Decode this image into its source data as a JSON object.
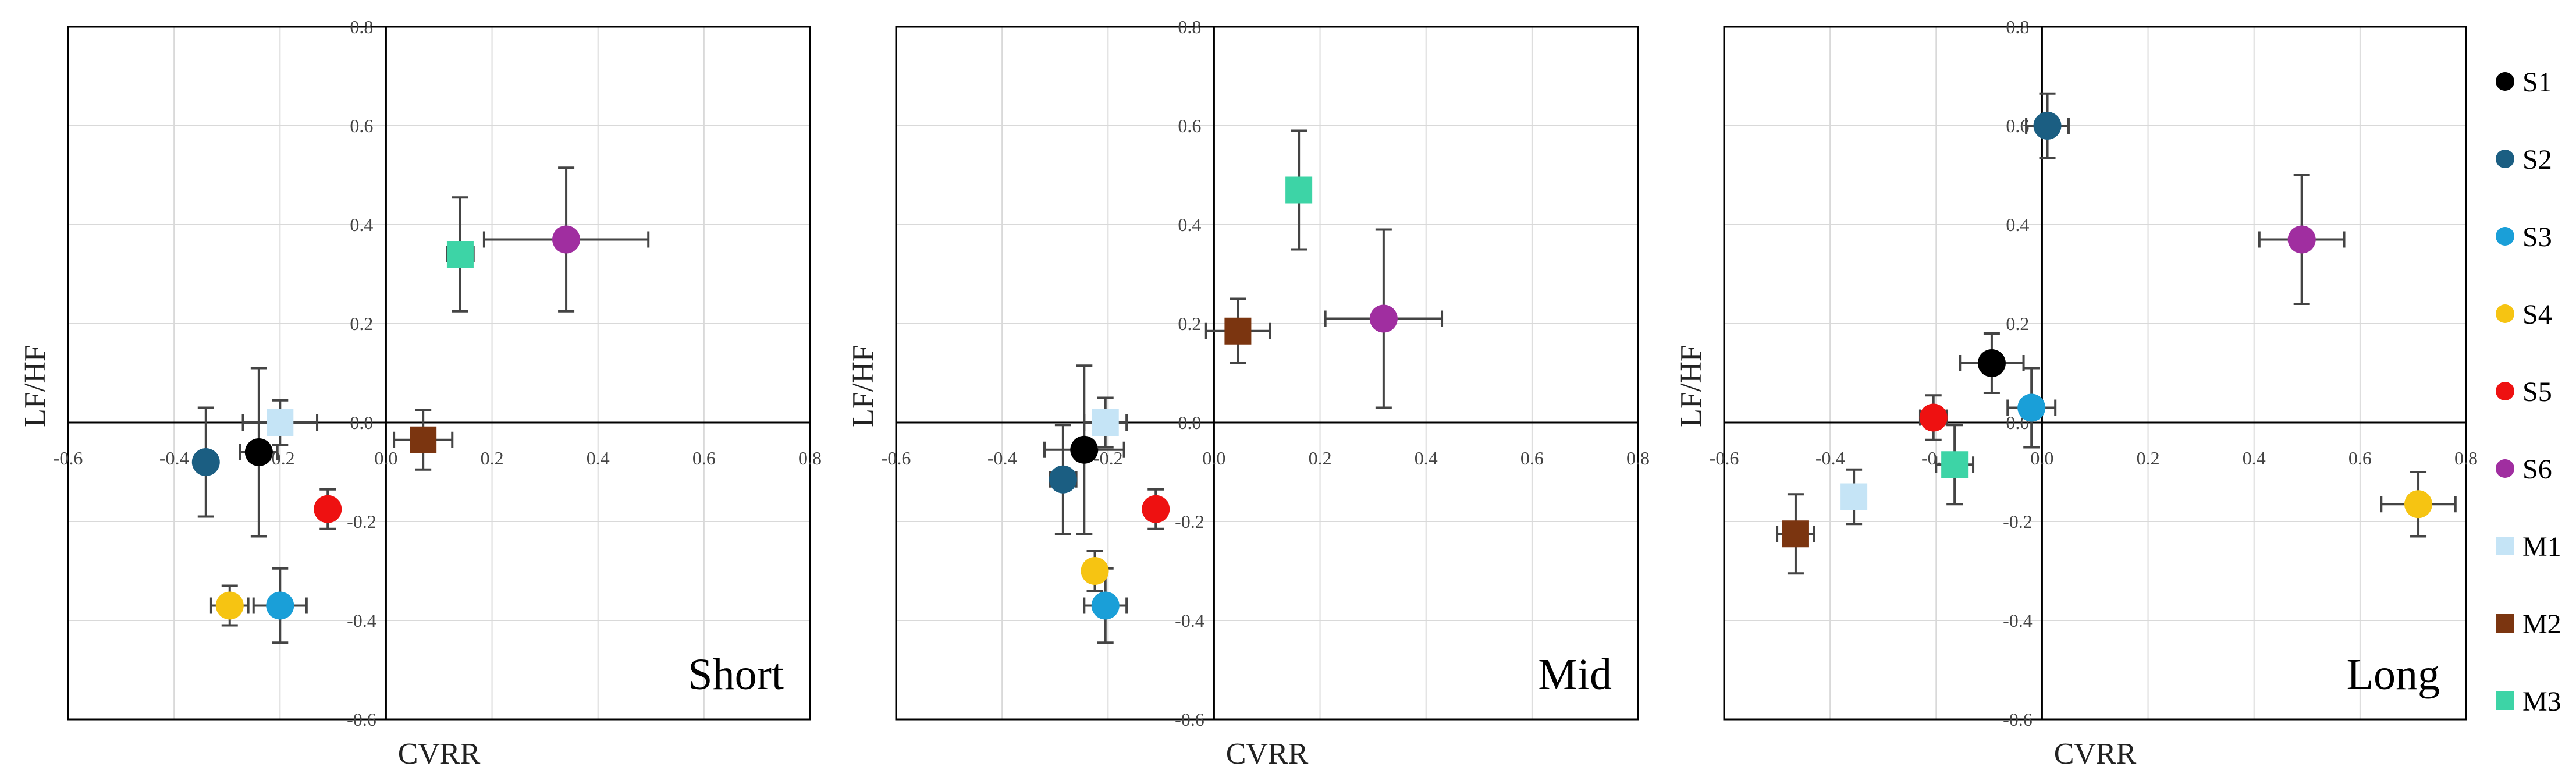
{
  "chart_data": [
    {
      "type": "scatter",
      "panel_label": "Short",
      "xlabel": "CVRR",
      "ylabel": "LF/HF",
      "xlim": [
        -0.6,
        0.8
      ],
      "ylim": [
        -0.6,
        0.8
      ],
      "xticks": [
        -0.6,
        -0.4,
        -0.2,
        0.0,
        0.2,
        0.4,
        0.6,
        0.8
      ],
      "yticks": [
        0.8,
        0.6,
        0.4,
        0.2,
        0.0,
        -0.2,
        -0.4,
        -0.6
      ],
      "series": [
        {
          "name": "S1",
          "x": -0.24,
          "y": -0.06,
          "xerr": 0.035,
          "yerr": 0.17
        },
        {
          "name": "S2",
          "x": -0.34,
          "y": -0.08,
          "xerr": 0.02,
          "yerr": 0.11
        },
        {
          "name": "S3",
          "x": -0.2,
          "y": -0.37,
          "xerr": 0.05,
          "yerr": 0.075
        },
        {
          "name": "S4",
          "x": -0.295,
          "y": -0.37,
          "xerr": 0.035,
          "yerr": 0.04
        },
        {
          "name": "S5",
          "x": -0.11,
          "y": -0.175,
          "xerr": 0.02,
          "yerr": 0.04
        },
        {
          "name": "S6",
          "x": 0.34,
          "y": 0.37,
          "xerr": 0.155,
          "yerr": 0.145
        },
        {
          "name": "M1",
          "x": -0.2,
          "y": 0.0,
          "xerr": 0.07,
          "yerr": 0.045
        },
        {
          "name": "M2",
          "x": 0.07,
          "y": -0.035,
          "xerr": 0.055,
          "yerr": 0.06
        },
        {
          "name": "M3",
          "x": 0.14,
          "y": 0.34,
          "xerr": 0.025,
          "yerr": 0.115
        }
      ]
    },
    {
      "type": "scatter",
      "panel_label": "Mid",
      "xlabel": "CVRR",
      "ylabel": "LF/HF",
      "xlim": [
        -0.6,
        0.8
      ],
      "ylim": [
        -0.6,
        0.8
      ],
      "xticks": [
        -0.6,
        -0.4,
        -0.2,
        0.0,
        0.2,
        0.4,
        0.6,
        0.8
      ],
      "yticks": [
        0.8,
        0.6,
        0.4,
        0.2,
        0.0,
        -0.2,
        -0.4,
        -0.6
      ],
      "series": [
        {
          "name": "S1",
          "x": -0.245,
          "y": -0.055,
          "xerr": 0.075,
          "yerr": 0.17
        },
        {
          "name": "S2",
          "x": -0.285,
          "y": -0.115,
          "xerr": 0.025,
          "yerr": 0.11
        },
        {
          "name": "S3",
          "x": -0.205,
          "y": -0.37,
          "xerr": 0.04,
          "yerr": 0.075
        },
        {
          "name": "S4",
          "x": -0.225,
          "y": -0.3,
          "xerr": 0.02,
          "yerr": 0.04
        },
        {
          "name": "S5",
          "x": -0.11,
          "y": -0.175,
          "xerr": 0.02,
          "yerr": 0.04
        },
        {
          "name": "S6",
          "x": 0.32,
          "y": 0.21,
          "xerr": 0.11,
          "yerr": 0.18
        },
        {
          "name": "M1",
          "x": -0.205,
          "y": 0.0,
          "xerr": 0.04,
          "yerr": 0.05
        },
        {
          "name": "M2",
          "x": 0.045,
          "y": 0.185,
          "xerr": 0.06,
          "yerr": 0.065
        },
        {
          "name": "M3",
          "x": 0.16,
          "y": 0.47,
          "xerr": 0.0,
          "yerr": 0.12
        }
      ]
    },
    {
      "type": "scatter",
      "panel_label": "Long",
      "xlabel": "CVRR",
      "ylabel": "LF/HF",
      "xlim": [
        -0.6,
        0.8
      ],
      "ylim": [
        -0.6,
        0.8
      ],
      "xticks": [
        -0.6,
        -0.4,
        -0.2,
        0.0,
        0.2,
        0.4,
        0.6,
        0.8
      ],
      "yticks": [
        0.8,
        0.6,
        0.4,
        0.2,
        0.0,
        -0.2,
        -0.4,
        -0.6
      ],
      "series": [
        {
          "name": "S1",
          "x": -0.095,
          "y": 0.12,
          "xerr": 0.06,
          "yerr": 0.06
        },
        {
          "name": "S2",
          "x": 0.01,
          "y": 0.6,
          "xerr": 0.04,
          "yerr": 0.065
        },
        {
          "name": "S3",
          "x": -0.02,
          "y": 0.03,
          "xerr": 0.045,
          "yerr": 0.08
        },
        {
          "name": "S4",
          "x": 0.71,
          "y": -0.165,
          "xerr": 0.07,
          "yerr": 0.065
        },
        {
          "name": "S5",
          "x": -0.205,
          "y": 0.01,
          "xerr": 0.025,
          "yerr": 0.045
        },
        {
          "name": "S6",
          "x": 0.49,
          "y": 0.37,
          "xerr": 0.08,
          "yerr": 0.13
        },
        {
          "name": "M1",
          "x": -0.355,
          "y": -0.15,
          "xerr": 0.02,
          "yerr": 0.055
        },
        {
          "name": "M2",
          "x": -0.465,
          "y": -0.225,
          "xerr": 0.035,
          "yerr": 0.08
        },
        {
          "name": "M3",
          "x": -0.165,
          "y": -0.085,
          "xerr": 0.035,
          "yerr": 0.08
        }
      ]
    }
  ],
  "legend": {
    "placement": "right",
    "items": [
      {
        "name": "S1",
        "marker": "circle",
        "color": "#000000"
      },
      {
        "name": "S2",
        "marker": "circle",
        "color": "#1b5e82"
      },
      {
        "name": "S3",
        "marker": "circle",
        "color": "#1a9fd8"
      },
      {
        "name": "S4",
        "marker": "circle",
        "color": "#f6c412"
      },
      {
        "name": "S5",
        "marker": "circle",
        "color": "#ee1111"
      },
      {
        "name": "S6",
        "marker": "circle",
        "color": "#a02ea0"
      },
      {
        "name": "M1",
        "marker": "square",
        "color": "#c5e4f6"
      },
      {
        "name": "M2",
        "marker": "square",
        "color": "#7b3510"
      },
      {
        "name": "M3",
        "marker": "square",
        "color": "#3dd4a6"
      }
    ]
  },
  "style": {
    "gridline_color": "#d9d9d9",
    "axis_color": "#000000",
    "errorbar_color": "#444444"
  }
}
